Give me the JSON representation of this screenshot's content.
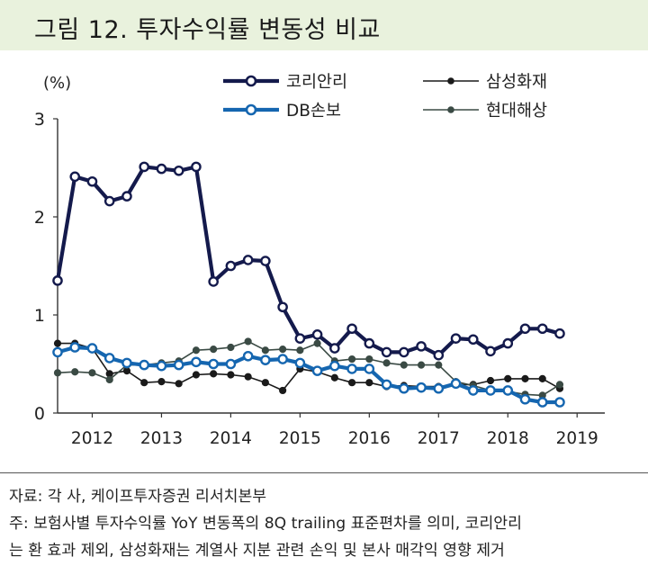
{
  "title": "그림 12.  투자수익률 변동성 비교",
  "chart_data": {
    "type": "line",
    "y_unit_label": "(%)",
    "ylim": [
      0,
      3
    ],
    "y_ticks": [
      0,
      1,
      2,
      3
    ],
    "x_tick_labels": [
      "2012",
      "2013",
      "2014",
      "2015",
      "2016",
      "2017",
      "2018",
      "2019"
    ],
    "x_tick_positions": [
      2012,
      2013,
      2014,
      2015,
      2016,
      2017,
      2018,
      2019
    ],
    "xlim": [
      2011.5,
      2019.4
    ],
    "grid": false,
    "legend_position": "top",
    "series": [
      {
        "name": "코리안리",
        "color": "#141a4c",
        "line_width": 4.2,
        "marker": "hollow-circle",
        "x": [
          2011.5,
          2011.75,
          2012.0,
          2012.25,
          2012.5,
          2012.75,
          2013.0,
          2013.25,
          2013.5,
          2013.75,
          2014.0,
          2014.25,
          2014.5,
          2014.75,
          2015.0,
          2015.25,
          2015.5,
          2015.75,
          2016.0,
          2016.25,
          2016.5,
          2016.75,
          2017.0,
          2017.25,
          2017.5,
          2017.75,
          2018.0,
          2018.25,
          2018.5,
          2018.75,
          2019.0,
          2019.25
        ],
        "values": [
          1.35,
          2.41,
          2.36,
          2.16,
          2.21,
          2.51,
          2.49,
          2.47,
          2.51,
          1.34,
          1.5,
          1.56,
          1.55,
          1.08,
          0.76,
          0.8,
          0.66,
          0.86,
          0.71,
          0.62,
          0.62,
          0.68,
          0.59,
          0.76,
          0.75,
          0.63,
          0.71,
          0.86,
          0.86,
          0.81,
          null,
          null
        ]
      },
      {
        "name": "삼성화재",
        "color": "#1a1a1a",
        "line_width": 1.6,
        "marker": "filled-circle",
        "x": [
          2011.5,
          2011.75,
          2012.0,
          2012.25,
          2012.5,
          2012.75,
          2013.0,
          2013.25,
          2013.5,
          2013.75,
          2014.0,
          2014.25,
          2014.5,
          2014.75,
          2015.0,
          2015.25,
          2015.5,
          2015.75,
          2016.0,
          2016.25,
          2016.5,
          2016.75,
          2017.0,
          2017.25,
          2017.5,
          2017.75,
          2018.0,
          2018.25,
          2018.5,
          2018.75,
          2019.0,
          2019.25
        ],
        "values": [
          0.71,
          0.71,
          0.66,
          0.4,
          0.43,
          0.31,
          0.32,
          0.3,
          0.39,
          0.4,
          0.39,
          0.37,
          0.31,
          0.23,
          0.45,
          0.42,
          0.36,
          0.31,
          0.31,
          0.27,
          0.28,
          0.27,
          0.27,
          0.29,
          0.29,
          0.33,
          0.35,
          0.35,
          0.35,
          0.25,
          null,
          null
        ]
      },
      {
        "name": "DB손보",
        "color": "#1566b0",
        "line_width": 4.2,
        "marker": "hollow-circle",
        "x": [
          2011.5,
          2011.75,
          2012.0,
          2012.25,
          2012.5,
          2012.75,
          2013.0,
          2013.25,
          2013.5,
          2013.75,
          2014.0,
          2014.25,
          2014.5,
          2014.75,
          2015.0,
          2015.25,
          2015.5,
          2015.75,
          2016.0,
          2016.25,
          2016.5,
          2016.75,
          2017.0,
          2017.25,
          2017.5,
          2017.75,
          2018.0,
          2018.25,
          2018.5,
          2018.75,
          2019.0,
          2019.25
        ],
        "values": [
          0.62,
          0.67,
          0.66,
          0.56,
          0.51,
          0.49,
          0.48,
          0.49,
          0.52,
          0.5,
          0.5,
          0.58,
          0.54,
          0.55,
          0.51,
          0.43,
          0.48,
          0.45,
          0.45,
          0.29,
          0.25,
          0.26,
          0.25,
          0.3,
          0.23,
          0.23,
          0.23,
          0.14,
          0.11,
          0.11,
          null,
          null
        ]
      },
      {
        "name": "현대해상",
        "color": "#3a4a44",
        "line_width": 1.6,
        "marker": "filled-circle",
        "x": [
          2011.5,
          2011.75,
          2012.0,
          2012.25,
          2012.5,
          2012.75,
          2013.0,
          2013.25,
          2013.5,
          2013.75,
          2014.0,
          2014.25,
          2014.5,
          2014.75,
          2015.0,
          2015.25,
          2015.5,
          2015.75,
          2016.0,
          2016.25,
          2016.5,
          2016.75,
          2017.0,
          2017.25,
          2017.5,
          2017.75,
          2018.0,
          2018.25,
          2018.5,
          2018.75,
          2019.0,
          2019.25
        ],
        "values": [
          0.41,
          0.42,
          0.41,
          0.34,
          0.49,
          0.49,
          0.51,
          0.53,
          0.64,
          0.65,
          0.67,
          0.73,
          0.64,
          0.65,
          0.64,
          0.71,
          0.53,
          0.55,
          0.55,
          0.51,
          0.49,
          0.49,
          0.49,
          0.32,
          0.28,
          0.23,
          0.22,
          0.19,
          0.18,
          0.29,
          null,
          null
        ]
      }
    ]
  },
  "source": "자료: 각 사, 케이프투자증권 리서치본부",
  "note_line_1": "주: 보험사별 투자수익률 YoY 변동폭의 8Q trailing 표준편차를 의미, 코리안리",
  "note_line_2": "는 환 효과 제외, 삼성화재는 계열사 지분 관련 손익 및 본사 매각익 영향 제거"
}
